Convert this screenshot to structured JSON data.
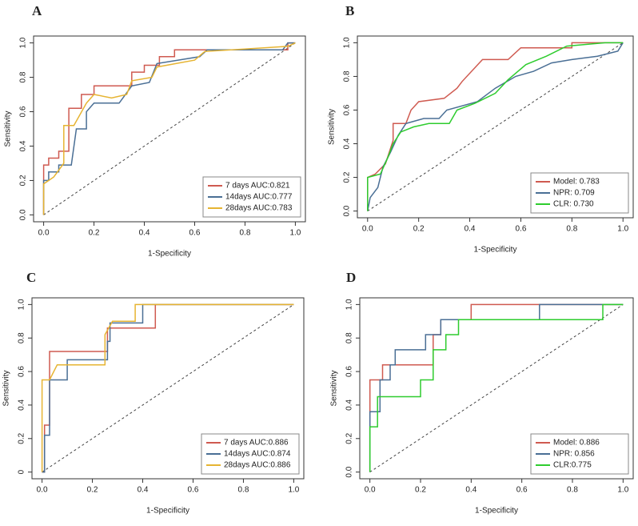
{
  "chart_data": [
    {
      "type": "line",
      "panel": "A",
      "xlabel": "1-Specificity",
      "ylabel": "Sensitivity",
      "xlim": [
        -0.04,
        1.04
      ],
      "ylim": [
        -0.04,
        1.04
      ],
      "xticks": [
        {
          "value": 0,
          "label": "0.0"
        },
        0.2,
        0.4,
        0.6,
        0.8,
        {
          "value": 1,
          "label": "1.0"
        }
      ],
      "yticks": [
        {
          "value": 0,
          "label": "0.0"
        },
        0.2,
        0.4,
        0.6,
        0.8,
        {
          "value": 1,
          "label": "1.0"
        }
      ],
      "legend": "bottom-right",
      "series": [
        {
          "name": "7 days AUC:0.821",
          "color": "#cf5a50",
          "x": [
            0,
            0,
            0.02,
            0.02,
            0.06,
            0.06,
            0.1,
            0.1,
            0.15,
            0.15,
            0.2,
            0.2,
            0.35,
            0.35,
            0.4,
            0.4,
            0.46,
            0.46,
            0.52,
            0.52,
            0.97,
            0.97,
            1
          ],
          "values": [
            0,
            0.29,
            0.29,
            0.33,
            0.33,
            0.37,
            0.37,
            0.62,
            0.62,
            0.7,
            0.7,
            0.75,
            0.75,
            0.83,
            0.83,
            0.87,
            0.87,
            0.92,
            0.92,
            0.96,
            0.96,
            1,
            1
          ]
        },
        {
          "name": "14days AUC:0.777",
          "color": "#4a6f95",
          "x": [
            0,
            0,
            0.02,
            0.02,
            0.06,
            0.06,
            0.11,
            0.13,
            0.17,
            0.17,
            0.2,
            0.3,
            0.35,
            0.42,
            0.45,
            0.62,
            0.65,
            0.95,
            0.97,
            1
          ],
          "values": [
            0,
            0.2,
            0.2,
            0.25,
            0.25,
            0.29,
            0.29,
            0.5,
            0.5,
            0.6,
            0.65,
            0.65,
            0.75,
            0.77,
            0.88,
            0.92,
            0.96,
            0.96,
            1,
            1
          ]
        },
        {
          "name": "28days AUC:0.783",
          "color": "#e6b432",
          "x": [
            0,
            0,
            0.04,
            0.08,
            0.08,
            0.12,
            0.17,
            0.2,
            0.27,
            0.33,
            0.35,
            0.43,
            0.45,
            0.6,
            0.64,
            0.97,
            1
          ],
          "values": [
            0,
            0.18,
            0.22,
            0.3,
            0.52,
            0.52,
            0.65,
            0.7,
            0.68,
            0.7,
            0.78,
            0.8,
            0.86,
            0.9,
            0.95,
            0.98,
            1
          ]
        }
      ]
    },
    {
      "type": "line",
      "panel": "B",
      "xlabel": "1-Specificity",
      "ylabel": "Sensitivity",
      "xlim": [
        -0.04,
        1.04
      ],
      "ylim": [
        -0.04,
        1.04
      ],
      "xticks": [
        {
          "value": 0,
          "label": "0.0"
        },
        0.2,
        0.4,
        0.6,
        0.8,
        {
          "value": 1,
          "label": "1.0"
        }
      ],
      "yticks": [
        {
          "value": 0,
          "label": "0.0"
        },
        0.2,
        0.4,
        0.6,
        0.8,
        {
          "value": 1,
          "label": "1.0"
        }
      ],
      "legend": "bottom-right",
      "series": [
        {
          "name": "Model: 0.783",
          "color": "#cf5a50",
          "x": [
            0,
            0,
            0.03,
            0.07,
            0.1,
            0.1,
            0.15,
            0.17,
            0.2,
            0.3,
            0.35,
            0.37,
            0.45,
            0.55,
            0.6,
            0.8,
            0.8,
            1
          ],
          "values": [
            0,
            0.2,
            0.22,
            0.28,
            0.42,
            0.52,
            0.52,
            0.6,
            0.65,
            0.67,
            0.73,
            0.77,
            0.9,
            0.9,
            0.97,
            0.97,
            1,
            1
          ]
        },
        {
          "name": "NPR: 0.709",
          "color": "#4a6f95",
          "x": [
            0,
            0.01,
            0.04,
            0.06,
            0.09,
            0.12,
            0.15,
            0.22,
            0.28,
            0.31,
            0.43,
            0.5,
            0.58,
            0.65,
            0.72,
            0.8,
            0.9,
            0.98,
            1
          ],
          "values": [
            0,
            0.08,
            0.14,
            0.26,
            0.35,
            0.45,
            0.52,
            0.55,
            0.55,
            0.6,
            0.65,
            0.73,
            0.8,
            0.83,
            0.88,
            0.9,
            0.92,
            0.95,
            1
          ]
        },
        {
          "name": "CLR: 0.730",
          "color": "#2ecc2e",
          "x": [
            0,
            0,
            0.05,
            0.08,
            0.1,
            0.13,
            0.18,
            0.24,
            0.32,
            0.35,
            0.42,
            0.5,
            0.55,
            0.62,
            0.7,
            0.78,
            0.93,
            1
          ],
          "values": [
            0,
            0.2,
            0.22,
            0.32,
            0.4,
            0.47,
            0.5,
            0.52,
            0.52,
            0.6,
            0.64,
            0.7,
            0.78,
            0.87,
            0.92,
            0.98,
            1,
            1
          ]
        }
      ]
    },
    {
      "type": "line",
      "panel": "C",
      "xlabel": "1-Specificity",
      "ylabel": "Sensitivity",
      "xlim": [
        -0.04,
        1.04
      ],
      "ylim": [
        -0.04,
        1.04
      ],
      "xticks": [
        {
          "value": 0,
          "label": "0.0"
        },
        0.2,
        0.4,
        0.6,
        0.8,
        {
          "value": 1,
          "label": "1.0"
        }
      ],
      "yticks": [
        {
          "value": 0,
          "label": "0"
        },
        0.2,
        0.4,
        0.6,
        0.8,
        {
          "value": 1,
          "label": "1.0"
        }
      ],
      "legend": "bottom-right",
      "series": [
        {
          "name": "7 days AUC:0.886",
          "color": "#cf5a50",
          "x": [
            0,
            0.01,
            0.01,
            0.03,
            0.03,
            0.26,
            0.26,
            0.45,
            0.45,
            1
          ],
          "values": [
            0,
            0,
            0.28,
            0.28,
            0.72,
            0.72,
            0.86,
            0.86,
            1,
            1
          ]
        },
        {
          "name": "14days AUC:0.874",
          "color": "#4a6f95",
          "x": [
            0,
            0.01,
            0.01,
            0.03,
            0.03,
            0.1,
            0.1,
            0.26,
            0.26,
            0.27,
            0.27,
            0.4,
            0.4,
            1
          ],
          "values": [
            0,
            0,
            0.22,
            0.22,
            0.55,
            0.55,
            0.67,
            0.67,
            0.78,
            0.78,
            0.89,
            0.89,
            1,
            1
          ]
        },
        {
          "name": "28days AUC:0.886",
          "color": "#e6b432",
          "x": [
            0,
            0,
            0.03,
            0.06,
            0.25,
            0.25,
            0.28,
            0.37,
            0.37,
            1
          ],
          "values": [
            0,
            0.55,
            0.55,
            0.64,
            0.64,
            0.82,
            0.9,
            0.9,
            1,
            1
          ]
        }
      ]
    },
    {
      "type": "line",
      "panel": "D",
      "xlabel": "1-Specificity",
      "ylabel": "Sensitivity",
      "xlim": [
        -0.04,
        1.04
      ],
      "ylim": [
        -0.04,
        1.04
      ],
      "xticks": [
        {
          "value": 0,
          "label": "0.0"
        },
        0.2,
        0.4,
        0.6,
        0.8,
        {
          "value": 1,
          "label": "1.0"
        }
      ],
      "yticks": [
        {
          "value": 0,
          "label": "0.0"
        },
        0.2,
        0.4,
        0.6,
        0.8,
        {
          "value": 1,
          "label": "1.0"
        }
      ],
      "legend": "bottom-right",
      "series": [
        {
          "name": "Model: 0.886",
          "color": "#cf5a50",
          "x": [
            0,
            0,
            0.05,
            0.05,
            0.25,
            0.25,
            0.28,
            0.28,
            0.4,
            0.4,
            1
          ],
          "values": [
            0,
            0.55,
            0.55,
            0.64,
            0.64,
            0.82,
            0.82,
            0.91,
            0.91,
            1,
            1
          ]
        },
        {
          "name": "NPR: 0.856",
          "color": "#4a6f95",
          "x": [
            0,
            0,
            0.04,
            0.04,
            0.08,
            0.08,
            0.1,
            0.1,
            0.22,
            0.22,
            0.28,
            0.28,
            0.67,
            0.67,
            1
          ],
          "values": [
            0,
            0.36,
            0.36,
            0.55,
            0.55,
            0.64,
            0.64,
            0.73,
            0.73,
            0.82,
            0.82,
            0.91,
            0.91,
            1,
            1
          ]
        },
        {
          "name": "CLR:0.775",
          "color": "#2ecc2e",
          "x": [
            0,
            0,
            0.03,
            0.03,
            0.2,
            0.2,
            0.25,
            0.25,
            0.3,
            0.3,
            0.35,
            0.35,
            0.92,
            0.92,
            1
          ],
          "values": [
            0,
            0.27,
            0.27,
            0.45,
            0.45,
            0.55,
            0.55,
            0.73,
            0.73,
            0.82,
            0.82,
            0.91,
            0.91,
            1,
            1
          ]
        }
      ]
    }
  ]
}
